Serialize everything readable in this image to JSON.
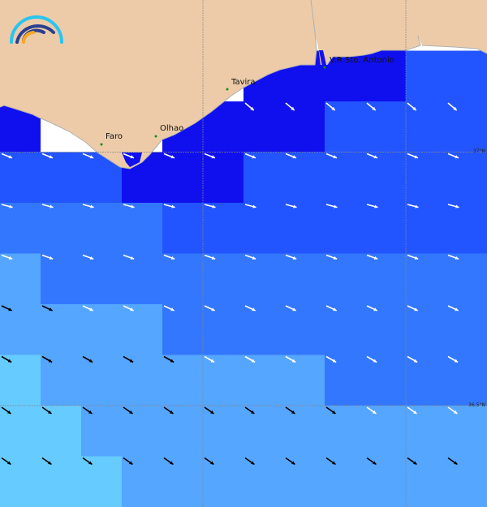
{
  "palette": {
    "w": "#ffffff",
    "d": "#1010ee",
    "b": "#2255ff",
    "c": "#3377ff",
    "e": "#55a6ff",
    "f": "#66ccff"
  },
  "land_color": "#edcba8",
  "coast_color": "#b0b0b0",
  "cells": [
    "wwwwwwwwwwww",
    "wwwwwwddddbb",
    "dwwwddddbbbb",
    "bbbdddbbbbbb",
    "ccccbbbbbbbb",
    "eccccccccccc",
    "eeeecccccccc",
    "feeeeeeecccc",
    "ffeeeeeeeeee",
    "fffeeeeeeeee"
  ],
  "arrows": [
    "",
    "",
    "      wwwwww",
    "wwwwwwwwwwww",
    "wwwwwwwwwwww",
    "wwwwwwwwwwww",
    "kkwwwwwwwwww",
    "kkkkkwwwwwww",
    "kkkkkkkkkwww",
    "kkkkkkkkkkkk"
  ],
  "arrow_direction_deg_below_east": [
    0,
    0,
    40,
    22,
    15,
    20,
    25,
    30,
    35,
    35
  ],
  "arrow_colors": {
    "w": "#ffffff",
    "k": "#000000"
  },
  "places": [
    {
      "name": "Faro"
    },
    {
      "name": "Olhao"
    },
    {
      "name": "Tavira"
    },
    {
      "name": "V.R Sto. Antonio"
    }
  ],
  "latitude_labels": [
    "37°N",
    "36.5°N"
  ],
  "logo_colors": [
    "#29c4f0",
    "#2a3f8f",
    "#f7a823"
  ]
}
